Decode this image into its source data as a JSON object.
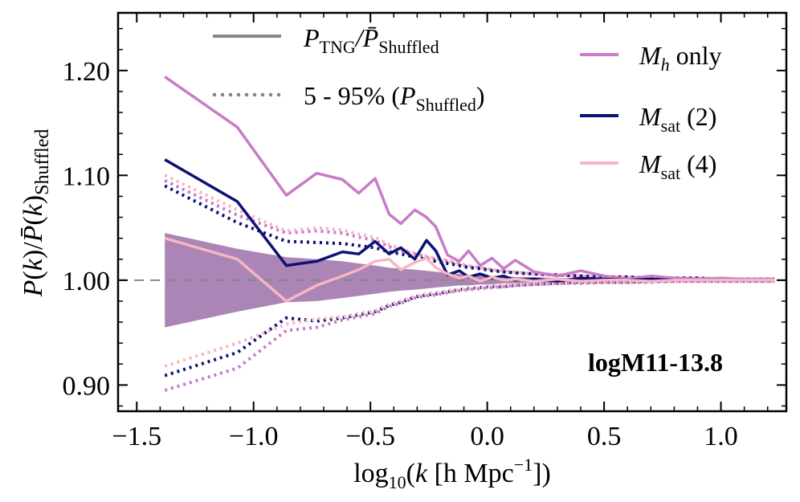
{
  "chart_data": {
    "type": "line",
    "title": "",
    "xlabel": "log10(k [h Mpc^-1])",
    "ylabel": "P(k)/P̄(k)_Shuffled",
    "xlim": [
      -1.58,
      1.28
    ],
    "ylim": [
      0.875,
      1.255
    ],
    "x_ticks": [
      -1.5,
      -1.0,
      -0.5,
      0.0,
      0.5,
      1.0
    ],
    "x_tick_labels": [
      "−1.5",
      "−1.0",
      "−0.5",
      "0.0",
      "0.5",
      "1.0"
    ],
    "y_ticks": [
      0.9,
      1.0,
      1.1,
      1.2
    ],
    "y_tick_labels": [
      "0.90",
      "1.00",
      "1.10",
      "1.20"
    ],
    "annotation": "logM11-13.8",
    "reference_line": 1.0,
    "style_legend": [
      {
        "label_main": "P",
        "label_sub": "TNG",
        "label_mid": "/P̄",
        "label_sub2": "Shuffled",
        "style": "solid"
      },
      {
        "label_main": "5 - 95% (",
        "label_p": "P",
        "label_sub": "Shuffled",
        "label_end": ")",
        "style": "dotted"
      }
    ],
    "series": [
      {
        "name": "M_h only",
        "label_main": "M",
        "label_sub": "h",
        "label_rest": " only",
        "color": "#c87bc8",
        "x": [
          -1.38,
          -1.07,
          -0.86,
          -0.73,
          -0.62,
          -0.55,
          -0.48,
          -0.42,
          -0.37,
          -0.31,
          -0.26,
          -0.22,
          -0.17,
          -0.12,
          -0.08,
          -0.03,
          0.02,
          0.07,
          0.12,
          0.2,
          0.3,
          0.4,
          0.5,
          0.6,
          0.7,
          0.8,
          0.9,
          1.0,
          1.1,
          1.23
        ],
        "values": [
          1.194,
          1.146,
          1.081,
          1.102,
          1.096,
          1.083,
          1.097,
          1.063,
          1.054,
          1.067,
          1.06,
          1.051,
          1.024,
          1.018,
          1.028,
          1.014,
          1.021,
          1.011,
          1.019,
          1.008,
          1.004,
          1.009,
          1.004,
          1.001,
          1.004,
          1.002,
          1.001,
          1.002,
          1.001,
          1.001
        ],
        "band_low": [
          0.895,
          0.916,
          0.952,
          0.955,
          0.962,
          0.965,
          0.968,
          0.975,
          0.978,
          0.983,
          0.985,
          0.986,
          0.988,
          0.99,
          0.991,
          0.992,
          0.993,
          0.994,
          0.995,
          0.996,
          0.997,
          0.997,
          0.998,
          0.998,
          0.998,
          0.999,
          0.999,
          0.999,
          0.999,
          0.999
        ],
        "band_high": [
          1.095,
          1.062,
          1.045,
          1.047,
          1.045,
          1.041,
          1.038,
          1.032,
          1.028,
          1.025,
          1.022,
          1.02,
          1.018,
          1.015,
          1.013,
          1.012,
          1.01,
          1.008,
          1.007,
          1.006,
          1.005,
          1.004,
          1.003,
          1.003,
          1.002,
          1.002,
          1.002,
          1.001,
          1.001,
          1.001
        ]
      },
      {
        "name": "M_sat (2)",
        "label_main": "M",
        "label_sub": "sat",
        "label_rest": " (2)",
        "color": "#0d1275",
        "x": [
          -1.38,
          -1.07,
          -0.86,
          -0.73,
          -0.62,
          -0.55,
          -0.48,
          -0.42,
          -0.37,
          -0.31,
          -0.26,
          -0.22,
          -0.17,
          -0.12,
          -0.08,
          -0.03,
          0.02,
          0.07,
          0.12,
          0.2,
          0.3,
          0.4,
          0.5,
          0.6,
          0.7,
          0.8,
          0.9,
          1.0,
          1.1,
          1.23
        ],
        "values": [
          1.115,
          1.075,
          1.014,
          1.018,
          1.027,
          1.025,
          1.037,
          1.025,
          1.031,
          1.02,
          1.038,
          1.028,
          1.005,
          1.009,
          1.003,
          1.006,
          1.002,
          1.004,
          1.0,
          1.001,
          0.999,
          1.002,
          1.001,
          1.0,
          1.001,
          1.0,
          1.0,
          1.0,
          1.0,
          1.0
        ],
        "band_low": [
          0.909,
          0.931,
          0.964,
          0.961,
          0.964,
          0.967,
          0.97,
          0.976,
          0.979,
          0.984,
          0.986,
          0.987,
          0.989,
          0.991,
          0.992,
          0.993,
          0.994,
          0.994,
          0.995,
          0.996,
          0.997,
          0.998,
          0.998,
          0.998,
          0.999,
          0.999,
          0.999,
          0.999,
          0.999,
          0.999
        ],
        "band_high": [
          1.09,
          1.055,
          1.037,
          1.036,
          1.035,
          1.033,
          1.031,
          1.027,
          1.025,
          1.022,
          1.02,
          1.018,
          1.016,
          1.014,
          1.012,
          1.011,
          1.009,
          1.008,
          1.007,
          1.006,
          1.005,
          1.004,
          1.003,
          1.003,
          1.002,
          1.002,
          1.002,
          1.001,
          1.001,
          1.001
        ]
      },
      {
        "name": "M_sat (4)",
        "label_main": "M",
        "label_sub": "sat",
        "label_rest": " (4)",
        "color": "#f7b6c2",
        "x": [
          -1.38,
          -1.07,
          -0.86,
          -0.73,
          -0.62,
          -0.55,
          -0.48,
          -0.42,
          -0.37,
          -0.31,
          -0.26,
          -0.22,
          -0.17,
          -0.12,
          -0.08,
          -0.03,
          0.02,
          0.07,
          0.12,
          0.2,
          0.3,
          0.4,
          0.5,
          0.6,
          0.7,
          0.8,
          0.9,
          1.0,
          1.1,
          1.23
        ],
        "values": [
          1.04,
          1.02,
          0.98,
          0.995,
          1.004,
          1.01,
          1.018,
          1.02,
          1.01,
          1.017,
          1.021,
          1.012,
          1.006,
          1.002,
          1.004,
          0.999,
          1.003,
          1.0,
          1.001,
          0.999,
          1.001,
          0.999,
          1.0,
          1.0,
          0.999,
          1.0,
          1.0,
          1.0,
          1.0,
          1.0
        ],
        "band_low": [
          0.918,
          0.94,
          0.958,
          0.963,
          0.965,
          0.968,
          0.971,
          0.977,
          0.98,
          0.985,
          0.987,
          0.988,
          0.99,
          0.991,
          0.992,
          0.993,
          0.994,
          0.995,
          0.995,
          0.996,
          0.997,
          0.998,
          0.998,
          0.998,
          0.999,
          0.999,
          0.999,
          0.999,
          0.999,
          0.999
        ],
        "band_high": [
          1.1,
          1.067,
          1.047,
          1.05,
          1.048,
          1.044,
          1.041,
          1.034,
          1.03,
          1.026,
          1.023,
          1.021,
          1.019,
          1.016,
          1.014,
          1.012,
          1.01,
          1.009,
          1.008,
          1.006,
          1.005,
          1.004,
          1.003,
          1.003,
          1.002,
          1.002,
          1.002,
          1.001,
          1.001,
          1.001
        ]
      }
    ],
    "shaded_region": {
      "color": "#8e5c9c",
      "x": [
        -1.38,
        -1.07,
        -0.86,
        -0.73,
        -0.62,
        -0.55,
        -0.48,
        -0.42,
        -0.37,
        -0.31,
        -0.26,
        -0.22,
        -0.17,
        -0.12,
        -0.08,
        -0.03,
        0.02,
        0.07,
        0.12,
        0.2,
        0.3,
        0.4,
        0.5,
        0.6,
        0.7,
        0.8,
        0.9,
        1.0,
        1.1,
        1.23
      ],
      "low": [
        0.955,
        0.97,
        0.979,
        0.98,
        0.983,
        0.985,
        0.987,
        0.989,
        0.99,
        0.991,
        0.992,
        0.993,
        0.994,
        0.995,
        0.995,
        0.996,
        0.996,
        0.997,
        0.997,
        0.998,
        0.998,
        0.998,
        0.999,
        0.999,
        0.999,
        0.999,
        0.999,
        0.999,
        0.9995,
        0.9995
      ],
      "high": [
        1.045,
        1.03,
        1.022,
        1.02,
        1.018,
        1.016,
        1.014,
        1.012,
        1.011,
        1.01,
        1.009,
        1.008,
        1.007,
        1.006,
        1.005,
        1.005,
        1.004,
        1.004,
        1.003,
        1.003,
        1.002,
        1.002,
        1.002,
        1.001,
        1.001,
        1.001,
        1.001,
        1.001,
        1.0005,
        1.0005
      ]
    },
    "legend_colors": {
      "style_solid": "#808080",
      "style_dotted": "#808080"
    }
  }
}
